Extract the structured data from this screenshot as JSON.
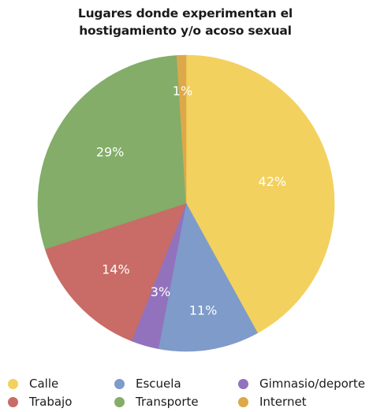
{
  "chart_data": {
    "type": "pie",
    "title_lines": [
      "Lugares donde experimentan el",
      "hostigamiento y/o acoso sexual"
    ],
    "slices": [
      {
        "name": "Calle",
        "value": 42,
        "label": "42%",
        "color": "#f2d15f"
      },
      {
        "name": "Escuela",
        "value": 11,
        "label": "11%",
        "color": "#7e9bca"
      },
      {
        "name": "Gimnasio/deporte",
        "value": 3,
        "label": "3%",
        "color": "#9272bd"
      },
      {
        "name": "Trabajo",
        "value": 14,
        "label": "14%",
        "color": "#c96b66"
      },
      {
        "name": "Transporte",
        "value": 29,
        "label": "29%",
        "color": "#83ad68"
      },
      {
        "name": "Internet",
        "value": 1,
        "label": "1%",
        "color": "#dda84a"
      }
    ],
    "start": "top",
    "direction": "clockwise",
    "legend": {
      "placement": "bottom",
      "rows": [
        [
          "Calle",
          "Escuela",
          "Gimnasio/deporte"
        ],
        [
          "Trabajo",
          "Transporte",
          "Internet"
        ]
      ]
    }
  }
}
